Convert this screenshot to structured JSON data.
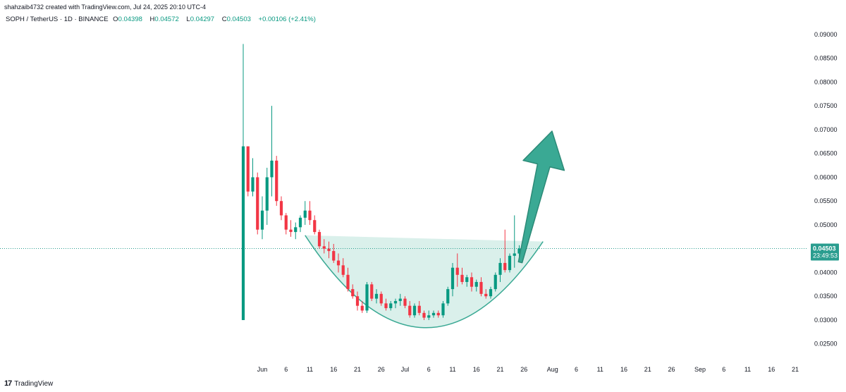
{
  "header": {
    "credit": "shahzaib4732 created with TradingView.com, Jul 24, 2025 20:10 UTC-4"
  },
  "symbol": {
    "name": "SOPH / TetherUS · 1D · BINANCE",
    "open_label": "O",
    "open": "0.04398",
    "high_label": "H",
    "high": "0.04572",
    "low_label": "L",
    "low": "0.04297",
    "close_label": "C",
    "close": "0.04503",
    "change": "+0.00106 (+2.41%)"
  },
  "price_tag": {
    "price": "0.04503",
    "countdown": "23:49:53"
  },
  "brand": {
    "name": "TradingView",
    "mark": "17"
  },
  "colors": {
    "up": "#089981",
    "down": "#f23645",
    "pattern_fill": "#cdebe4",
    "arrow": "#3aa994",
    "price_line": "#2a9d8f"
  },
  "chart_data": {
    "type": "candlestick",
    "interval": "1D",
    "y_ticks": [
      "0.09000",
      "0.08500",
      "0.08000",
      "0.07500",
      "0.07000",
      "0.06500",
      "0.06000",
      "0.05500",
      "0.05000",
      "0.04500",
      "0.04000",
      "0.03500",
      "0.03000",
      "0.02500"
    ],
    "ylim": [
      0.0217,
      0.0928
    ],
    "x_ticks": [
      {
        "label": "Jun",
        "day": 0
      },
      {
        "label": "6",
        "day": 5
      },
      {
        "label": "11",
        "day": 10
      },
      {
        "label": "16",
        "day": 15
      },
      {
        "label": "21",
        "day": 20
      },
      {
        "label": "26",
        "day": 25
      },
      {
        "label": "Jul",
        "day": 30
      },
      {
        "label": "6",
        "day": 35
      },
      {
        "label": "11",
        "day": 40
      },
      {
        "label": "16",
        "day": 45
      },
      {
        "label": "21",
        "day": 50
      },
      {
        "label": "26",
        "day": 55
      },
      {
        "label": "Aug",
        "day": 61
      },
      {
        "label": "6",
        "day": 66
      },
      {
        "label": "11",
        "day": 71
      },
      {
        "label": "16",
        "day": 76
      },
      {
        "label": "21",
        "day": 81
      },
      {
        "label": "26",
        "day": 86
      },
      {
        "label": "Sep",
        "day": 92
      },
      {
        "label": "6",
        "day": 97
      },
      {
        "label": "11",
        "day": 102
      },
      {
        "label": "16",
        "day": 107
      },
      {
        "label": "21",
        "day": 112
      }
    ],
    "candles": [
      {
        "d": -4,
        "o": 0.03,
        "h": 0.088,
        "l": 0.03,
        "c": 0.0665
      },
      {
        "d": -3,
        "o": 0.0665,
        "h": 0.0665,
        "l": 0.056,
        "c": 0.057
      },
      {
        "d": -2,
        "o": 0.057,
        "h": 0.064,
        "l": 0.056,
        "c": 0.06
      },
      {
        "d": -1,
        "o": 0.06,
        "h": 0.061,
        "l": 0.048,
        "c": 0.049
      },
      {
        "d": 0,
        "o": 0.049,
        "h": 0.056,
        "l": 0.047,
        "c": 0.053
      },
      {
        "d": 1,
        "o": 0.053,
        "h": 0.062,
        "l": 0.05,
        "c": 0.06
      },
      {
        "d": 2,
        "o": 0.06,
        "h": 0.075,
        "l": 0.056,
        "c": 0.0635
      },
      {
        "d": 3,
        "o": 0.0635,
        "h": 0.0645,
        "l": 0.054,
        "c": 0.055
      },
      {
        "d": 4,
        "o": 0.055,
        "h": 0.056,
        "l": 0.051,
        "c": 0.052
      },
      {
        "d": 5,
        "o": 0.052,
        "h": 0.0525,
        "l": 0.048,
        "c": 0.049
      },
      {
        "d": 6,
        "o": 0.049,
        "h": 0.051,
        "l": 0.0475,
        "c": 0.0485
      },
      {
        "d": 7,
        "o": 0.0485,
        "h": 0.0505,
        "l": 0.047,
        "c": 0.0495
      },
      {
        "d": 8,
        "o": 0.0495,
        "h": 0.052,
        "l": 0.0485,
        "c": 0.0515
      },
      {
        "d": 9,
        "o": 0.0515,
        "h": 0.055,
        "l": 0.05,
        "c": 0.053
      },
      {
        "d": 10,
        "o": 0.053,
        "h": 0.055,
        "l": 0.05,
        "c": 0.051
      },
      {
        "d": 11,
        "o": 0.051,
        "h": 0.052,
        "l": 0.048,
        "c": 0.0485
      },
      {
        "d": 12,
        "o": 0.0485,
        "h": 0.049,
        "l": 0.045,
        "c": 0.0455
      },
      {
        "d": 13,
        "o": 0.0455,
        "h": 0.047,
        "l": 0.044,
        "c": 0.045
      },
      {
        "d": 14,
        "o": 0.045,
        "h": 0.0465,
        "l": 0.043,
        "c": 0.0445
      },
      {
        "d": 15,
        "o": 0.0445,
        "h": 0.046,
        "l": 0.042,
        "c": 0.0425
      },
      {
        "d": 16,
        "o": 0.0425,
        "h": 0.044,
        "l": 0.04,
        "c": 0.0415
      },
      {
        "d": 17,
        "o": 0.0415,
        "h": 0.043,
        "l": 0.039,
        "c": 0.0395
      },
      {
        "d": 18,
        "o": 0.0395,
        "h": 0.041,
        "l": 0.036,
        "c": 0.0365
      },
      {
        "d": 19,
        "o": 0.0365,
        "h": 0.0375,
        "l": 0.0345,
        "c": 0.035
      },
      {
        "d": 20,
        "o": 0.035,
        "h": 0.036,
        "l": 0.032,
        "c": 0.033
      },
      {
        "d": 21,
        "o": 0.033,
        "h": 0.034,
        "l": 0.0315,
        "c": 0.032
      },
      {
        "d": 22,
        "o": 0.032,
        "h": 0.038,
        "l": 0.0315,
        "c": 0.0375
      },
      {
        "d": 23,
        "o": 0.0375,
        "h": 0.038,
        "l": 0.034,
        "c": 0.0345
      },
      {
        "d": 24,
        "o": 0.0345,
        "h": 0.0365,
        "l": 0.0335,
        "c": 0.0355
      },
      {
        "d": 25,
        "o": 0.0355,
        "h": 0.036,
        "l": 0.033,
        "c": 0.0335
      },
      {
        "d": 26,
        "o": 0.0335,
        "h": 0.0345,
        "l": 0.032,
        "c": 0.0325
      },
      {
        "d": 27,
        "o": 0.0325,
        "h": 0.034,
        "l": 0.032,
        "c": 0.0335
      },
      {
        "d": 28,
        "o": 0.0335,
        "h": 0.0345,
        "l": 0.0325,
        "c": 0.034
      },
      {
        "d": 29,
        "o": 0.034,
        "h": 0.0355,
        "l": 0.033,
        "c": 0.0345
      },
      {
        "d": 30,
        "o": 0.0345,
        "h": 0.035,
        "l": 0.0325,
        "c": 0.033
      },
      {
        "d": 31,
        "o": 0.033,
        "h": 0.034,
        "l": 0.0305,
        "c": 0.031
      },
      {
        "d": 32,
        "o": 0.031,
        "h": 0.0335,
        "l": 0.0305,
        "c": 0.033
      },
      {
        "d": 33,
        "o": 0.033,
        "h": 0.034,
        "l": 0.031,
        "c": 0.0315
      },
      {
        "d": 34,
        "o": 0.0315,
        "h": 0.032,
        "l": 0.03,
        "c": 0.0305
      },
      {
        "d": 35,
        "o": 0.0305,
        "h": 0.032,
        "l": 0.03,
        "c": 0.031
      },
      {
        "d": 36,
        "o": 0.031,
        "h": 0.032,
        "l": 0.0305,
        "c": 0.0315
      },
      {
        "d": 37,
        "o": 0.0315,
        "h": 0.032,
        "l": 0.0305,
        "c": 0.031
      },
      {
        "d": 38,
        "o": 0.031,
        "h": 0.034,
        "l": 0.0305,
        "c": 0.0335
      },
      {
        "d": 39,
        "o": 0.0335,
        "h": 0.037,
        "l": 0.033,
        "c": 0.0365
      },
      {
        "d": 40,
        "o": 0.0365,
        "h": 0.042,
        "l": 0.035,
        "c": 0.041
      },
      {
        "d": 41,
        "o": 0.041,
        "h": 0.044,
        "l": 0.037,
        "c": 0.0395
      },
      {
        "d": 42,
        "o": 0.0395,
        "h": 0.041,
        "l": 0.0375,
        "c": 0.038
      },
      {
        "d": 43,
        "o": 0.038,
        "h": 0.0395,
        "l": 0.037,
        "c": 0.039
      },
      {
        "d": 44,
        "o": 0.039,
        "h": 0.04,
        "l": 0.036,
        "c": 0.037
      },
      {
        "d": 45,
        "o": 0.037,
        "h": 0.0385,
        "l": 0.036,
        "c": 0.038
      },
      {
        "d": 46,
        "o": 0.038,
        "h": 0.039,
        "l": 0.035,
        "c": 0.0355
      },
      {
        "d": 47,
        "o": 0.0355,
        "h": 0.0365,
        "l": 0.0345,
        "c": 0.035
      },
      {
        "d": 48,
        "o": 0.035,
        "h": 0.037,
        "l": 0.0345,
        "c": 0.0365
      },
      {
        "d": 49,
        "o": 0.0365,
        "h": 0.04,
        "l": 0.036,
        "c": 0.0395
      },
      {
        "d": 50,
        "o": 0.0395,
        "h": 0.043,
        "l": 0.038,
        "c": 0.042
      },
      {
        "d": 51,
        "o": 0.042,
        "h": 0.049,
        "l": 0.04,
        "c": 0.0405
      },
      {
        "d": 52,
        "o": 0.0405,
        "h": 0.044,
        "l": 0.04,
        "c": 0.0435
      },
      {
        "d": 53,
        "o": 0.0435,
        "h": 0.052,
        "l": 0.041,
        "c": 0.044
      },
      {
        "d": 54,
        "o": 0.04398,
        "h": 0.04572,
        "l": 0.04297,
        "c": 0.04503
      }
    ],
    "current_price": 0.04503
  }
}
